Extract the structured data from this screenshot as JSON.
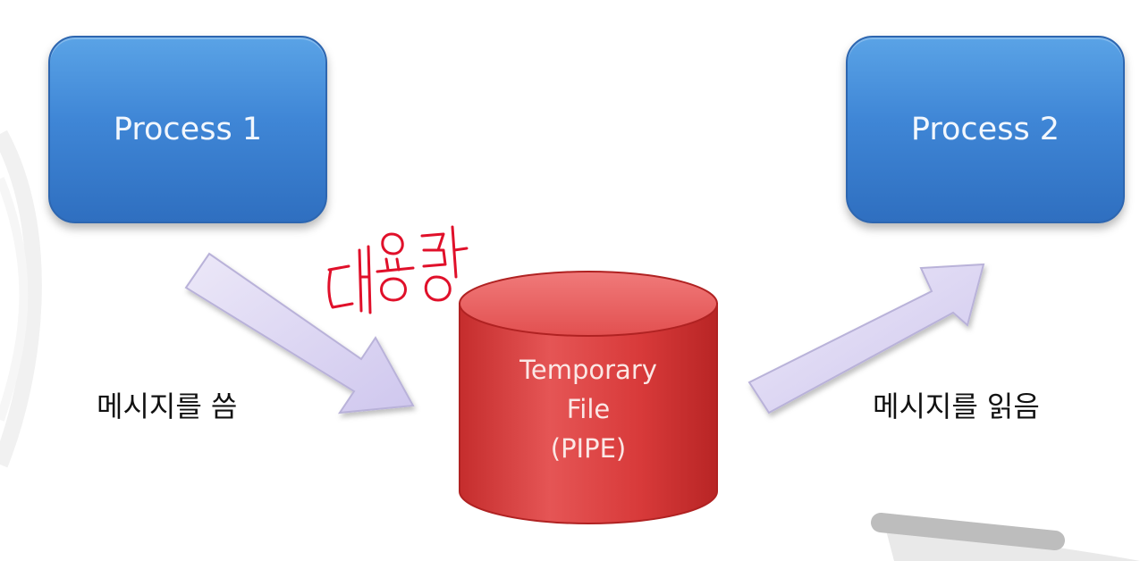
{
  "process1": {
    "label": "Process 1"
  },
  "process2": {
    "label": "Process 2"
  },
  "storage": {
    "line1": "Temporary",
    "line2": "File",
    "line3": "(PIPE)"
  },
  "labels": {
    "write": "메시지를 씀",
    "read": "메시지를 읽음"
  },
  "annotation": {
    "handwritten": "대용량"
  },
  "colors": {
    "process_fill": "#3f86d6",
    "storage_fill": "#d63b3b",
    "arrow_fill": "#dcd6f2",
    "annotation_ink": "#e0102a"
  }
}
